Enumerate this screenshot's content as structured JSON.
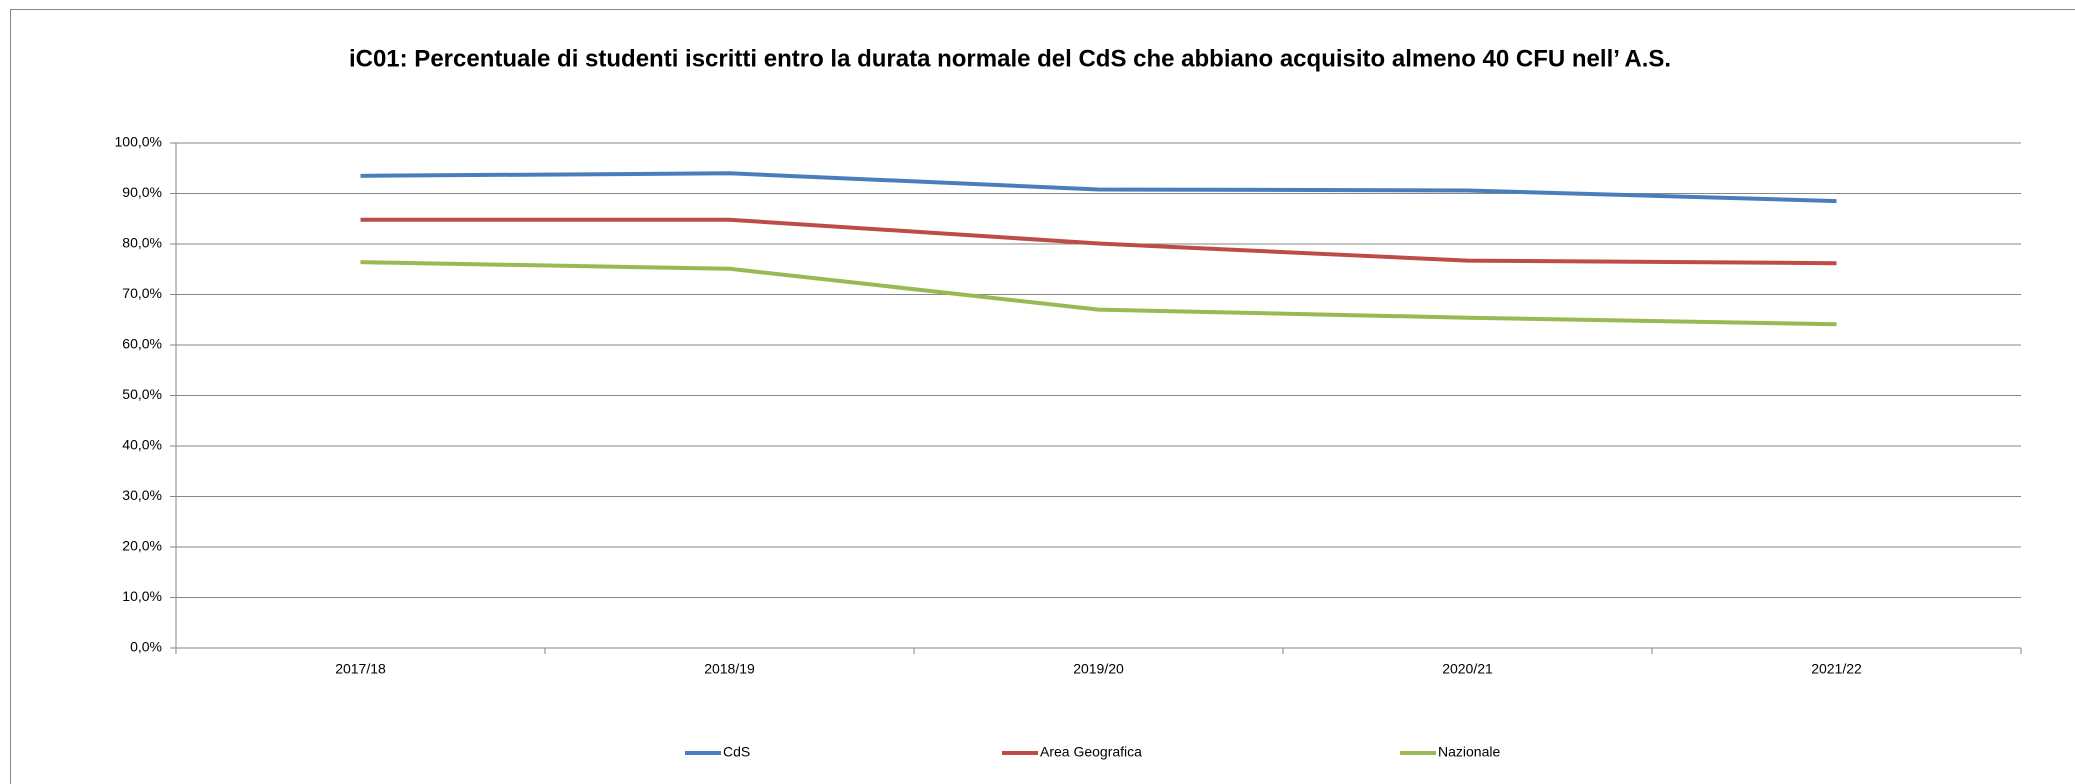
{
  "chart_data": {
    "type": "line",
    "title": "iC01: Percentuale di studenti iscritti entro la durata normale del CdS che abbiano acquisito almeno 40 CFU nell’ A.S.",
    "categories": [
      "2017/18",
      "2018/19",
      "2019/20",
      "2020/21",
      "2021/22"
    ],
    "series": [
      {
        "name": "CdS",
        "color": "#4a7ebb",
        "values": [
          93.5,
          94.0,
          90.8,
          90.6,
          88.5
        ]
      },
      {
        "name": "Area Geografica",
        "color": "#be4b48",
        "values": [
          84.8,
          84.8,
          80.1,
          76.7,
          76.2
        ]
      },
      {
        "name": "Nazionale",
        "color": "#98b954",
        "values": [
          76.4,
          75.1,
          67.0,
          65.4,
          64.1
        ]
      }
    ],
    "ylim": [
      0,
      100
    ],
    "yticks": [
      {
        "value": 0,
        "label": "0,0%"
      },
      {
        "value": 10,
        "label": "10,0%"
      },
      {
        "value": 20,
        "label": "20,0%"
      },
      {
        "value": 30,
        "label": "30,0%"
      },
      {
        "value": 40,
        "label": "40,0%"
      },
      {
        "value": 50,
        "label": "50,0%"
      },
      {
        "value": 60,
        "label": "60,0%"
      },
      {
        "value": 70,
        "label": "70,0%"
      },
      {
        "value": 80,
        "label": "80,0%"
      },
      {
        "value": 90,
        "label": "90,0%"
      },
      {
        "value": 100,
        "label": "100,0%"
      }
    ],
    "grid": true,
    "legend": "bottom"
  }
}
